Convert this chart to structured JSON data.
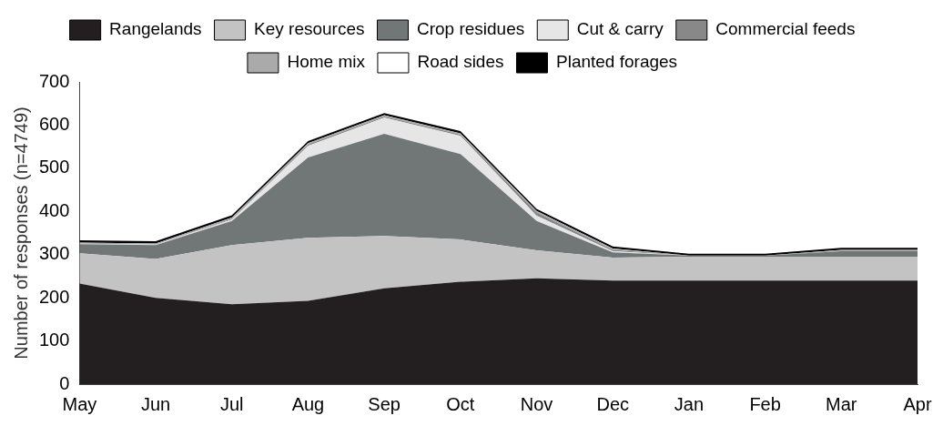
{
  "chart_data": {
    "type": "area",
    "stacked": true,
    "ylabel": "Number of responses (n=4749)",
    "categories": [
      "May",
      "Jun",
      "Jul",
      "Aug",
      "Sep",
      "Oct",
      "Nov",
      "Dec",
      "Jan",
      "Feb",
      "Mar",
      "Apr"
    ],
    "ylim": [
      0,
      700
    ],
    "yticks": [
      0,
      100,
      200,
      300,
      400,
      500,
      600,
      700
    ],
    "grid": false,
    "legend": "top",
    "series": [
      {
        "name": "Rangelands",
        "color": "#231f20",
        "values": [
          233,
          200,
          185,
          193,
          222,
          237,
          245,
          240,
          240,
          240,
          240,
          240
        ]
      },
      {
        "name": "Key resources",
        "color": "#c3c3c3",
        "values": [
          70,
          90,
          137,
          146,
          121,
          98,
          65,
          53,
          55,
          55,
          55,
          55
        ]
      },
      {
        "name": "Crop residues",
        "color": "#717677",
        "values": [
          21,
          32,
          56,
          186,
          237,
          198,
          68,
          12,
          3,
          3,
          13,
          13
        ]
      },
      {
        "name": "Cut & carry",
        "color": "#e6e6e6",
        "values": [
          1,
          1,
          3,
          27,
          37,
          42,
          12,
          3,
          0,
          0,
          0,
          0
        ]
      },
      {
        "name": "Commercial feeds",
        "color": "#888888",
        "values": [
          0,
          0,
          2,
          3,
          3,
          3,
          8,
          3,
          0,
          0,
          0,
          0
        ]
      },
      {
        "name": "Home mix",
        "color": "#aaaaaa",
        "values": [
          3,
          3,
          3,
          3,
          3,
          3,
          3,
          3,
          0,
          0,
          3,
          3
        ]
      },
      {
        "name": "Road sides",
        "color": "#ffffff",
        "values": [
          null,
          null,
          null,
          null,
          null,
          null,
          null,
          null,
          null,
          null,
          null,
          null
        ]
      },
      {
        "name": "Planted forages",
        "color": "#000000",
        "values": [
          5,
          5,
          5,
          5,
          5,
          5,
          5,
          5,
          4,
          4,
          5,
          5
        ]
      }
    ]
  }
}
